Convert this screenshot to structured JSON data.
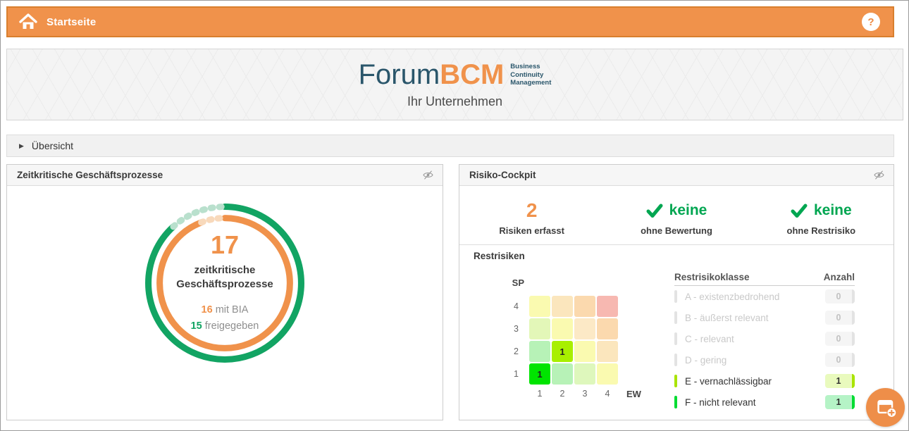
{
  "app": {
    "title": "Startseite",
    "help_label": "?"
  },
  "banner": {
    "logo_part1": "Forum",
    "logo_part2": "BCM",
    "logo_sub1": "Business",
    "logo_sub2": "Continuity",
    "logo_sub3": "Management",
    "subtitle": "Ihr Unternehmen"
  },
  "overview": {
    "label": "Übersicht"
  },
  "colors": {
    "accent_orange": "#f0924b",
    "accent_green": "#12a463",
    "check_green": "#00a651",
    "donut_green_faded": "#b9e0cd",
    "donut_orange_faded": "#f8d9bb"
  },
  "process_panel": {
    "title": "Zeitkritische Geschäftsprozesse",
    "donut": {
      "total": "17",
      "label_line1": "zeitkritische",
      "label_line2": "Geschäftsprozesse",
      "bia_count": "16",
      "bia_label": " mit BIA",
      "released_count": "15",
      "released_label": " freigegeben"
    }
  },
  "risk_panel": {
    "title": "Risiko-Cockpit",
    "stats": [
      {
        "value": "2",
        "label": "Risiken erfasst",
        "check": false
      },
      {
        "value": "keine",
        "label": "ohne Bewertung",
        "check": true
      },
      {
        "value": "keine",
        "label": "ohne Restrisiko",
        "check": true
      }
    ],
    "restrisiken": {
      "heading": "Restrisiken",
      "matrix": {
        "y_axis": "SP",
        "x_axis": "EW",
        "row_labels": [
          "4",
          "3",
          "2",
          "1"
        ],
        "col_labels": [
          "1",
          "2",
          "3",
          "4"
        ],
        "rows": [
          [
            {
              "color": "#fafab0"
            },
            {
              "color": "#fbe6bd"
            },
            {
              "color": "#fbd9ae"
            },
            {
              "color": "#f7b8b1"
            }
          ],
          [
            {
              "color": "#e3f7b8"
            },
            {
              "color": "#fafab0"
            },
            {
              "color": "#fce9c6"
            },
            {
              "color": "#fbd9ae"
            }
          ],
          [
            {
              "color": "#b7f2b7"
            },
            {
              "color": "#a8ef00",
              "count": "1"
            },
            {
              "color": "#fafab0"
            },
            {
              "color": "#fbe6bd"
            }
          ],
          [
            {
              "color": "#00e400",
              "count": "1"
            },
            {
              "color": "#b7f2b7"
            },
            {
              "color": "#def7bc"
            },
            {
              "color": "#fafab0"
            }
          ]
        ]
      },
      "table": {
        "col1": "Restrisikoklasse",
        "col2": "Anzahl",
        "rows": [
          {
            "label": "A - existenzbedrohend",
            "count": "0",
            "active": false,
            "color": "#e3e3e3",
            "badge_bg": "#f5f5f5"
          },
          {
            "label": "B - äußerst relevant",
            "count": "0",
            "active": false,
            "color": "#e3e3e3",
            "badge_bg": "#f5f5f5"
          },
          {
            "label": "C - relevant",
            "count": "0",
            "active": false,
            "color": "#e3e3e3",
            "badge_bg": "#f5f5f5"
          },
          {
            "label": "D - gering",
            "count": "0",
            "active": false,
            "color": "#e3e3e3",
            "badge_bg": "#f5f5f5"
          },
          {
            "label": "E - vernachlässigbar",
            "count": "1",
            "active": true,
            "color": "#a9e400",
            "badge_bg": "#e9fabd"
          },
          {
            "label": "F - nicht relevant",
            "count": "1",
            "active": true,
            "color": "#00dc32",
            "badge_bg": "#b5f3c6"
          }
        ]
      }
    }
  }
}
